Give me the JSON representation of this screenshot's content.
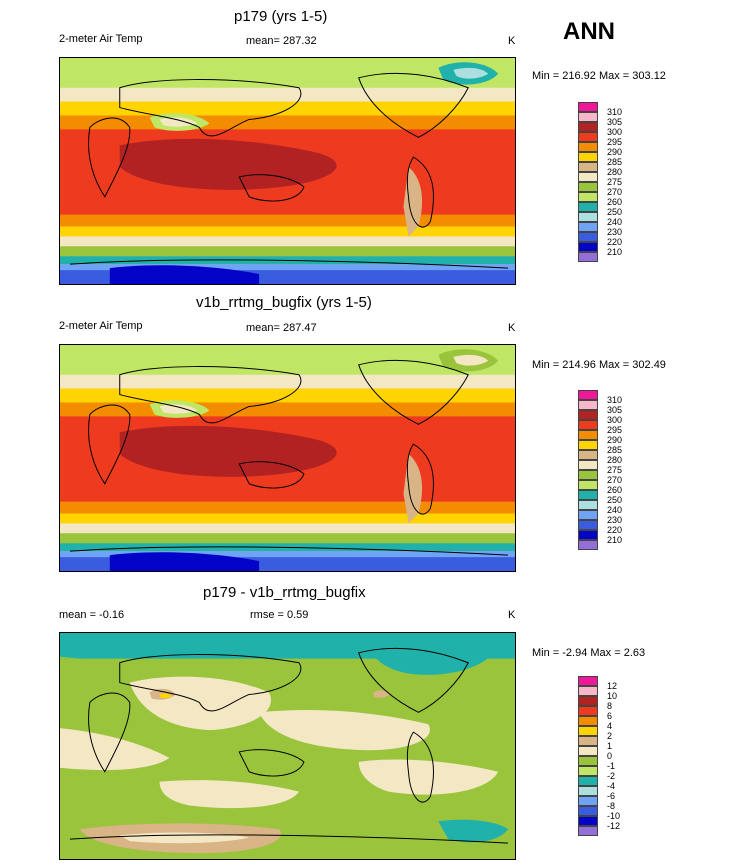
{
  "season": "ANN",
  "units": "K",
  "panels": [
    {
      "title": "p179 (yrs 1-5)",
      "left_label": "2-meter Air Temp",
      "center_label": "mean= 287.32",
      "units": "K",
      "minmax": "Min = 216.92 Max = 303.12",
      "legend_labels": [
        "310",
        "305",
        "300",
        "295",
        "290",
        "285",
        "280",
        "275",
        "270",
        "260",
        "250",
        "240",
        "230",
        "220",
        "210"
      ]
    },
    {
      "title": "v1b_rrtmg_bugfix (yrs 1-5)",
      "left_label": "2-meter Air Temp",
      "center_label": "mean= 287.47",
      "units": "K",
      "minmax": "Min = 214.96 Max = 302.49",
      "legend_labels": [
        "310",
        "305",
        "300",
        "295",
        "290",
        "285",
        "280",
        "275",
        "270",
        "260",
        "250",
        "240",
        "230",
        "220",
        "210"
      ]
    },
    {
      "title": "p179 - v1b_rrtmg_bugfix",
      "left_label": "mean = -0.16",
      "center_label": "rmse = 0.59",
      "units": "K",
      "minmax": "Min = -2.94 Max = 2.63",
      "legend_labels": [
        "12",
        "10",
        "8",
        "6",
        "4",
        "2",
        "1",
        "0",
        "-1",
        "-2",
        "-4",
        "-6",
        "-8",
        "-10",
        "-12"
      ]
    }
  ],
  "colors": {
    "abs_scale": [
      "#f01898",
      "#f7b7c6",
      "#b22222",
      "#ee3b1f",
      "#f48c00",
      "#ffd400",
      "#d9b486",
      "#f3e7c4",
      "#9ac43c",
      "#bfe665",
      "#20b2aa",
      "#abdfe0",
      "#6ea3f5",
      "#3a5de0",
      "#0404c8",
      "#9270d8"
    ],
    "diff_scale": [
      "#f01898",
      "#f7b7c6",
      "#b22222",
      "#ee3b1f",
      "#f48c00",
      "#ffd400",
      "#d9b486",
      "#f3e7c4",
      "#9ac43c",
      "#bfe665",
      "#20b2aa",
      "#abdfe0",
      "#6ea3f5",
      "#3a5de0",
      "#0404c8",
      "#9270d8"
    ]
  }
}
